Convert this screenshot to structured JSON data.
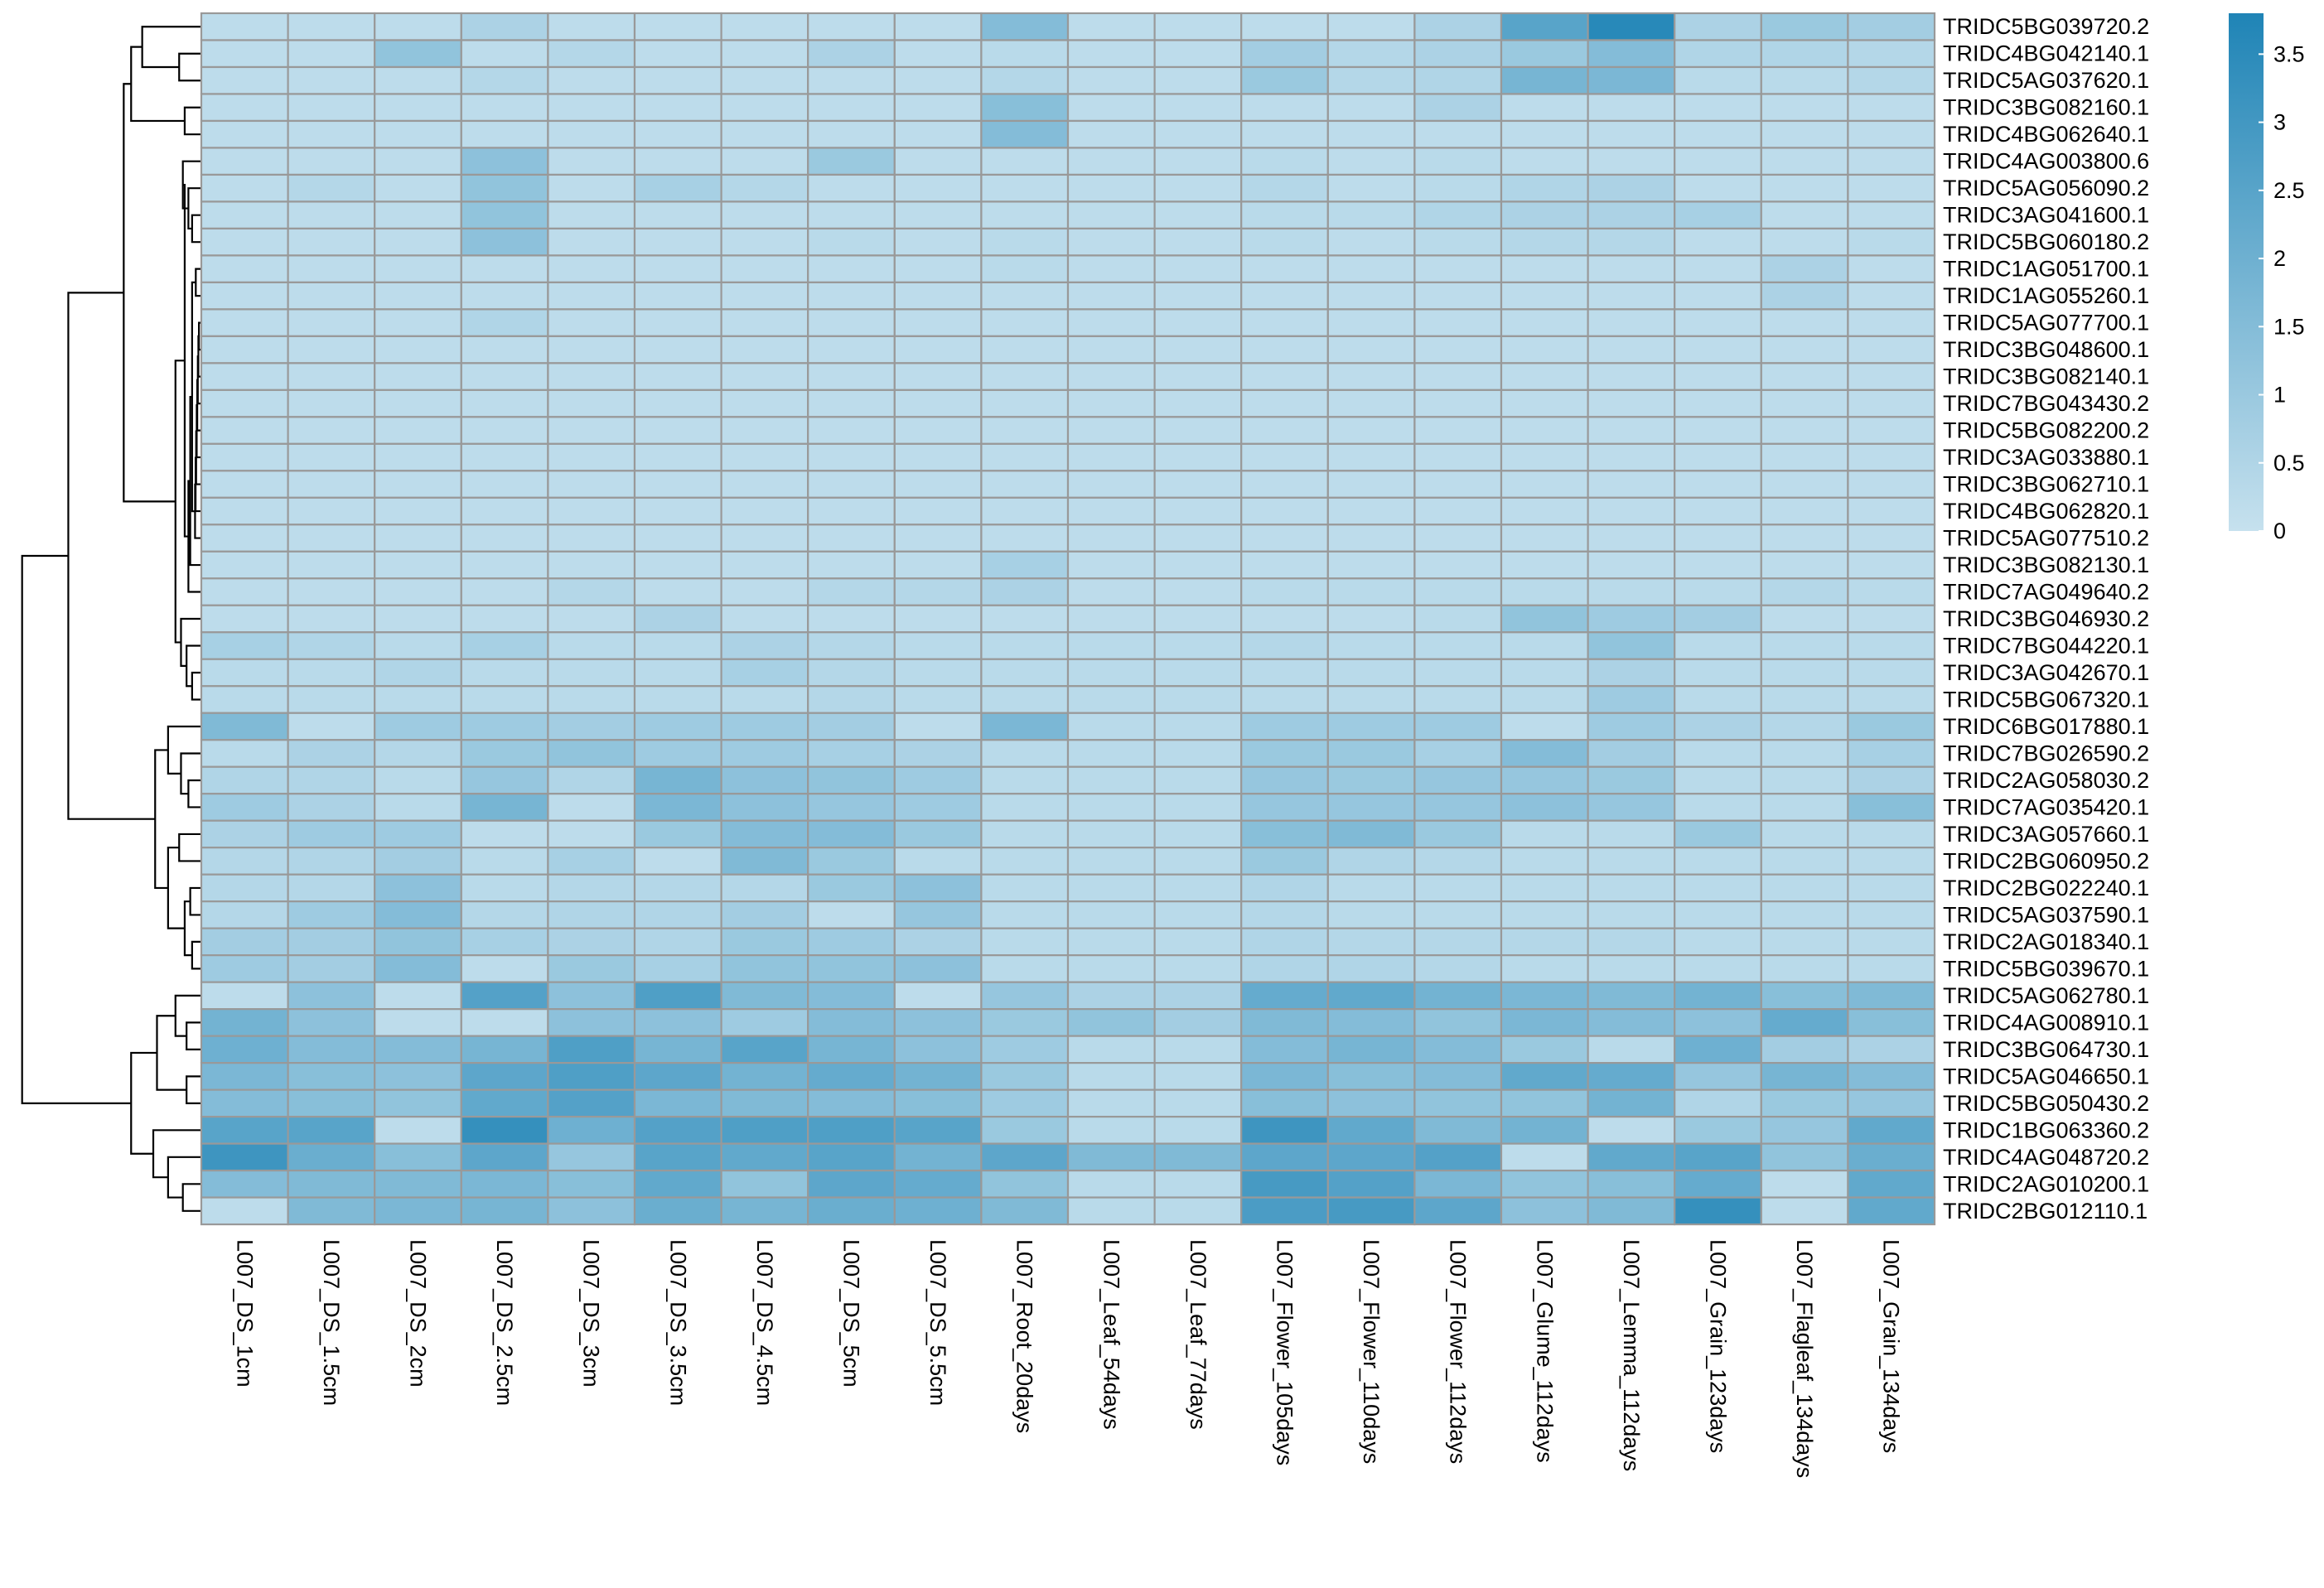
{
  "chart_data": {
    "type": "heatmap",
    "columns": [
      "L007_DS_1cm",
      "L007_DS_1.5cm",
      "L007_DS_2cm",
      "L007_DS_2.5cm",
      "L007_DS_3cm",
      "L007_DS_3.5cm",
      "L007_DS_4.5cm",
      "L007_DS_5cm",
      "L007_DS_5.5cm",
      "L007_Root_20days",
      "L007_Leaf_54days",
      "L007_Leaf_77days",
      "L007_Flower_105days",
      "L007_Flower_110days",
      "L007_Flower_112days",
      "L007_Glume_112days",
      "L007_Lemma_112days",
      "L007_Grain_123days",
      "L007_Flagleaf_134days",
      "L007_Grain_134days"
    ],
    "rows": [
      "TRIDC5BG039720.2",
      "TRIDC4BG042140.1",
      "TRIDC5AG037620.1",
      "TRIDC3BG082160.1",
      "TRIDC4BG062640.1",
      "TRIDC4AG003800.6",
      "TRIDC5AG056090.2",
      "TRIDC3AG041600.1",
      "TRIDC5BG060180.2",
      "TRIDC1AG051700.1",
      "TRIDC1AG055260.1",
      "TRIDC5AG077700.1",
      "TRIDC3BG048600.1",
      "TRIDC3BG082140.1",
      "TRIDC7BG043430.2",
      "TRIDC5BG082200.2",
      "TRIDC3AG033880.1",
      "TRIDC3BG062710.1",
      "TRIDC4BG062820.1",
      "TRIDC5AG077510.2",
      "TRIDC3BG082130.1",
      "TRIDC7AG049640.2",
      "TRIDC3BG046930.2",
      "TRIDC7BG044220.1",
      "TRIDC3AG042670.1",
      "TRIDC5BG067320.1",
      "TRIDC6BG017880.1",
      "TRIDC7BG026590.2",
      "TRIDC2AG058030.2",
      "TRIDC7AG035420.1",
      "TRIDC3AG057660.1",
      "TRIDC2BG060950.2",
      "TRIDC2BG022240.1",
      "TRIDC5AG037590.1",
      "TRIDC2AG018340.1",
      "TRIDC5BG039670.1",
      "TRIDC5AG062780.1",
      "TRIDC4AG008910.1",
      "TRIDC3BG064730.1",
      "TRIDC5AG046650.1",
      "TRIDC5BG050430.2",
      "TRIDC1BG063360.2",
      "TRIDC4AG048720.2",
      "TRIDC2AG010200.1",
      "TRIDC2BG012110.1"
    ],
    "values": [
      [
        0.2,
        0.2,
        0.2,
        0.6,
        0.2,
        0.2,
        0.2,
        0.2,
        0.2,
        1.5,
        0.2,
        0.2,
        0.2,
        0.2,
        0.6,
        2.5,
        3.6,
        0.6,
        1.0,
        0.8
      ],
      [
        0.2,
        0.2,
        1.2,
        0.2,
        0.4,
        0.2,
        0.2,
        0.6,
        0.2,
        0.3,
        0.2,
        0.2,
        0.8,
        0.4,
        0.6,
        1.0,
        1.5,
        0.5,
        0.5,
        0.4
      ],
      [
        0.2,
        0.2,
        0.2,
        0.4,
        0.2,
        0.2,
        0.2,
        0.2,
        0.2,
        0.4,
        0.2,
        0.2,
        1.0,
        0.4,
        0.5,
        1.8,
        1.7,
        0.3,
        0.3,
        0.4
      ],
      [
        0.2,
        0.2,
        0.2,
        0.2,
        0.2,
        0.2,
        0.2,
        0.2,
        0.2,
        1.4,
        0.2,
        0.2,
        0.2,
        0.2,
        0.6,
        0.2,
        0.2,
        0.2,
        0.2,
        0.2
      ],
      [
        0.2,
        0.2,
        0.2,
        0.2,
        0.2,
        0.2,
        0.2,
        0.2,
        0.2,
        1.5,
        0.2,
        0.2,
        0.2,
        0.2,
        0.2,
        0.2,
        0.2,
        0.2,
        0.2,
        0.2
      ],
      [
        0.2,
        0.2,
        0.2,
        1.3,
        0.2,
        0.2,
        0.2,
        1.0,
        0.2,
        0.2,
        0.2,
        0.2,
        0.3,
        0.2,
        0.3,
        0.2,
        0.2,
        0.2,
        0.2,
        0.2
      ],
      [
        0.2,
        0.4,
        0.2,
        1.2,
        0.2,
        0.7,
        0.4,
        0.2,
        0.2,
        0.2,
        0.2,
        0.2,
        0.4,
        0.2,
        0.3,
        0.5,
        0.6,
        0.2,
        0.2,
        0.2
      ],
      [
        0.2,
        0.2,
        0.2,
        1.2,
        0.2,
        0.2,
        0.2,
        0.2,
        0.2,
        0.2,
        0.2,
        0.2,
        0.3,
        0.3,
        0.5,
        0.6,
        0.6,
        0.7,
        0.2,
        0.2
      ],
      [
        0.2,
        0.2,
        0.2,
        1.3,
        0.2,
        0.2,
        0.2,
        0.3,
        0.2,
        0.3,
        0.2,
        0.2,
        0.3,
        0.2,
        0.3,
        0.4,
        0.4,
        0.2,
        0.2,
        0.3
      ],
      [
        0.2,
        0.2,
        0.2,
        0.2,
        0.2,
        0.2,
        0.2,
        0.2,
        0.2,
        0.3,
        0.2,
        0.2,
        0.2,
        0.2,
        0.2,
        0.2,
        0.2,
        0.2,
        0.6,
        0.2
      ],
      [
        0.2,
        0.2,
        0.2,
        0.2,
        0.2,
        0.2,
        0.2,
        0.2,
        0.2,
        0.2,
        0.2,
        0.2,
        0.2,
        0.2,
        0.2,
        0.2,
        0.2,
        0.2,
        0.6,
        0.2
      ],
      [
        0.2,
        0.2,
        0.2,
        0.5,
        0.2,
        0.2,
        0.2,
        0.2,
        0.2,
        0.2,
        0.2,
        0.2,
        0.2,
        0.2,
        0.2,
        0.2,
        0.2,
        0.2,
        0.2,
        0.2
      ],
      [
        0.2,
        0.2,
        0.2,
        0.2,
        0.2,
        0.2,
        0.2,
        0.2,
        0.2,
        0.2,
        0.2,
        0.2,
        0.2,
        0.2,
        0.2,
        0.2,
        0.2,
        0.2,
        0.2,
        0.2
      ],
      [
        0.2,
        0.2,
        0.2,
        0.2,
        0.2,
        0.2,
        0.2,
        0.2,
        0.2,
        0.2,
        0.2,
        0.2,
        0.2,
        0.2,
        0.2,
        0.2,
        0.2,
        0.2,
        0.2,
        0.2
      ],
      [
        0.2,
        0.2,
        0.2,
        0.2,
        0.2,
        0.2,
        0.2,
        0.2,
        0.2,
        0.2,
        0.2,
        0.2,
        0.2,
        0.2,
        0.2,
        0.2,
        0.2,
        0.2,
        0.2,
        0.2
      ],
      [
        0.2,
        0.2,
        0.2,
        0.2,
        0.2,
        0.2,
        0.2,
        0.2,
        0.2,
        0.2,
        0.2,
        0.2,
        0.2,
        0.2,
        0.2,
        0.2,
        0.2,
        0.2,
        0.2,
        0.2
      ],
      [
        0.2,
        0.2,
        0.2,
        0.2,
        0.2,
        0.2,
        0.2,
        0.2,
        0.2,
        0.2,
        0.2,
        0.2,
        0.2,
        0.2,
        0.2,
        0.2,
        0.2,
        0.2,
        0.2,
        0.2
      ],
      [
        0.2,
        0.2,
        0.2,
        0.2,
        0.2,
        0.2,
        0.2,
        0.2,
        0.2,
        0.2,
        0.2,
        0.2,
        0.2,
        0.2,
        0.2,
        0.2,
        0.2,
        0.2,
        0.2,
        0.2
      ],
      [
        0.2,
        0.2,
        0.2,
        0.2,
        0.2,
        0.2,
        0.2,
        0.2,
        0.2,
        0.2,
        0.2,
        0.2,
        0.2,
        0.2,
        0.2,
        0.2,
        0.2,
        0.2,
        0.2,
        0.2
      ],
      [
        0.2,
        0.2,
        0.2,
        0.2,
        0.2,
        0.2,
        0.2,
        0.2,
        0.2,
        0.2,
        0.2,
        0.2,
        0.2,
        0.2,
        0.2,
        0.2,
        0.2,
        0.2,
        0.2,
        0.2
      ],
      [
        0.2,
        0.2,
        0.2,
        0.2,
        0.2,
        0.2,
        0.2,
        0.2,
        0.2,
        0.7,
        0.2,
        0.2,
        0.2,
        0.2,
        0.2,
        0.2,
        0.2,
        0.2,
        0.2,
        0.2
      ],
      [
        0.2,
        0.2,
        0.2,
        0.2,
        0.4,
        0.2,
        0.2,
        0.4,
        0.4,
        0.6,
        0.2,
        0.2,
        0.3,
        0.3,
        0.3,
        0.3,
        0.3,
        0.3,
        0.4,
        0.3
      ],
      [
        0.2,
        0.2,
        0.2,
        0.2,
        0.2,
        0.6,
        0.2,
        0.2,
        0.2,
        0.2,
        0.2,
        0.2,
        0.2,
        0.2,
        0.3,
        1.2,
        0.9,
        0.8,
        0.2,
        0.2
      ],
      [
        0.7,
        0.5,
        0.3,
        0.7,
        0.3,
        0.3,
        0.6,
        0.4,
        0.3,
        0.3,
        0.3,
        0.3,
        0.4,
        0.3,
        0.3,
        0.3,
        1.2,
        0.3,
        0.3,
        0.3
      ],
      [
        0.3,
        0.3,
        0.5,
        0.3,
        0.3,
        0.3,
        0.7,
        0.4,
        0.3,
        0.3,
        0.3,
        0.3,
        0.3,
        0.3,
        0.3,
        0.3,
        0.6,
        0.3,
        0.3,
        0.3
      ],
      [
        0.3,
        0.3,
        0.3,
        0.3,
        0.3,
        0.3,
        0.3,
        0.4,
        0.3,
        0.3,
        0.3,
        0.3,
        0.3,
        0.3,
        0.3,
        0.3,
        0.9,
        0.3,
        0.3,
        0.3
      ],
      [
        1.6,
        0.2,
        0.9,
        0.9,
        0.8,
        0.9,
        0.9,
        0.8,
        0.2,
        1.7,
        0.3,
        0.3,
        0.9,
        0.9,
        0.9,
        0.2,
        0.9,
        0.6,
        0.4,
        1.0
      ],
      [
        0.3,
        0.6,
        0.4,
        1.0,
        1.2,
        0.9,
        0.9,
        0.7,
        0.6,
        0.3,
        0.3,
        0.3,
        1.0,
        1.0,
        0.7,
        1.5,
        0.8,
        0.3,
        0.3,
        0.7
      ],
      [
        0.5,
        0.5,
        0.3,
        1.1,
        0.5,
        1.8,
        1.3,
        1.2,
        0.9,
        0.3,
        0.3,
        0.3,
        1.1,
        1.0,
        1.1,
        1.1,
        1.0,
        0.3,
        0.3,
        0.6
      ],
      [
        0.9,
        0.6,
        0.3,
        1.8,
        0.2,
        1.7,
        1.3,
        1.1,
        0.9,
        0.3,
        0.3,
        0.3,
        1.1,
        1.1,
        1.1,
        1.3,
        1.1,
        0.3,
        0.3,
        1.4
      ],
      [
        0.6,
        0.9,
        0.9,
        0.2,
        0.2,
        1.0,
        1.5,
        1.5,
        1.0,
        0.3,
        0.3,
        0.3,
        1.4,
        1.6,
        1.0,
        0.3,
        0.3,
        1.0,
        0.3,
        0.3
      ],
      [
        0.4,
        0.5,
        0.8,
        0.3,
        0.7,
        0.2,
        1.6,
        1.0,
        0.3,
        0.3,
        0.3,
        0.3,
        1.0,
        0.5,
        0.4,
        0.3,
        0.3,
        0.3,
        0.3,
        0.3
      ],
      [
        0.4,
        0.4,
        1.3,
        0.3,
        0.4,
        0.4,
        0.4,
        1.0,
        1.3,
        0.3,
        0.3,
        0.3,
        0.5,
        0.3,
        0.3,
        0.3,
        0.3,
        0.3,
        0.3,
        0.3
      ],
      [
        0.4,
        0.9,
        1.5,
        0.4,
        0.5,
        0.5,
        0.8,
        0.2,
        1.1,
        0.3,
        0.3,
        0.3,
        0.4,
        0.3,
        0.3,
        0.3,
        0.3,
        0.3,
        0.3,
        0.3
      ],
      [
        0.8,
        0.8,
        1.2,
        0.7,
        0.6,
        0.5,
        1.0,
        0.9,
        0.6,
        0.3,
        0.3,
        0.3,
        0.5,
        0.4,
        0.4,
        0.4,
        0.4,
        0.3,
        0.3,
        0.3
      ],
      [
        0.9,
        0.8,
        1.5,
        0.2,
        1.0,
        0.7,
        1.2,
        1.2,
        1.3,
        0.3,
        0.3,
        0.3,
        0.5,
        0.5,
        0.4,
        0.3,
        0.3,
        0.3,
        0.3,
        0.3
      ],
      [
        0.2,
        1.3,
        0.2,
        2.6,
        1.3,
        2.7,
        1.6,
        1.5,
        0.2,
        1.1,
        0.6,
        0.6,
        2.2,
        2.3,
        1.9,
        1.7,
        1.6,
        1.9,
        1.4,
        1.6
      ],
      [
        1.9,
        1.3,
        0.2,
        0.2,
        1.3,
        1.3,
        0.9,
        1.5,
        1.3,
        1.0,
        1.2,
        0.8,
        1.6,
        1.5,
        1.2,
        1.7,
        1.5,
        1.3,
        2.2,
        1.4
      ],
      [
        2.0,
        1.5,
        1.5,
        1.8,
        2.7,
        1.8,
        2.5,
        1.8,
        1.3,
        0.9,
        0.3,
        0.3,
        1.5,
        1.8,
        1.5,
        1.0,
        0.3,
        2.0,
        0.8,
        0.6
      ],
      [
        1.7,
        1.4,
        1.3,
        2.4,
        2.7,
        2.4,
        1.9,
        2.2,
        1.9,
        1.0,
        0.3,
        0.3,
        1.7,
        1.4,
        1.5,
        2.3,
        2.2,
        1.1,
        1.8,
        1.5
      ],
      [
        1.5,
        1.4,
        1.2,
        2.3,
        2.6,
        1.7,
        1.6,
        1.5,
        1.4,
        0.9,
        0.3,
        0.3,
        1.4,
        1.3,
        1.2,
        1.2,
        1.9,
        0.5,
        1.0,
        1.1
      ],
      [
        2.5,
        2.5,
        0.2,
        3.3,
        2.0,
        2.6,
        2.7,
        2.7,
        2.5,
        1.0,
        0.3,
        0.3,
        3.1,
        2.3,
        1.6,
        1.9,
        0.2,
        1.0,
        1.1,
        2.3
      ],
      [
        3.1,
        2.1,
        1.4,
        2.4,
        1.1,
        2.5,
        2.3,
        2.5,
        1.9,
        2.4,
        1.6,
        1.6,
        2.4,
        2.4,
        2.6,
        0.2,
        2.3,
        2.5,
        1.2,
        2.1
      ],
      [
        1.5,
        1.6,
        1.6,
        1.7,
        1.4,
        2.3,
        1.2,
        2.4,
        2.2,
        1.2,
        0.3,
        0.3,
        2.9,
        2.6,
        1.7,
        1.2,
        1.4,
        2.2,
        0.2,
        2.3
      ],
      [
        0.2,
        1.6,
        1.7,
        1.8,
        1.3,
        2.1,
        1.8,
        2.1,
        2.0,
        1.6,
        0.3,
        0.3,
        2.8,
        2.9,
        2.4,
        1.3,
        1.6,
        3.3,
        0.2,
        2.3
      ]
    ],
    "colorscale": {
      "min_color": "#c6e1ee",
      "max_color": "#1f84b6",
      "min": 0,
      "max": 3.8,
      "ticks": [
        "0",
        "0.5",
        "1",
        "1.5",
        "2",
        "2.5",
        "3",
        "3.5"
      ]
    },
    "grid_color": "#999999",
    "row_dendrogram": "left",
    "title": "",
    "xlabel": "",
    "ylabel": ""
  }
}
